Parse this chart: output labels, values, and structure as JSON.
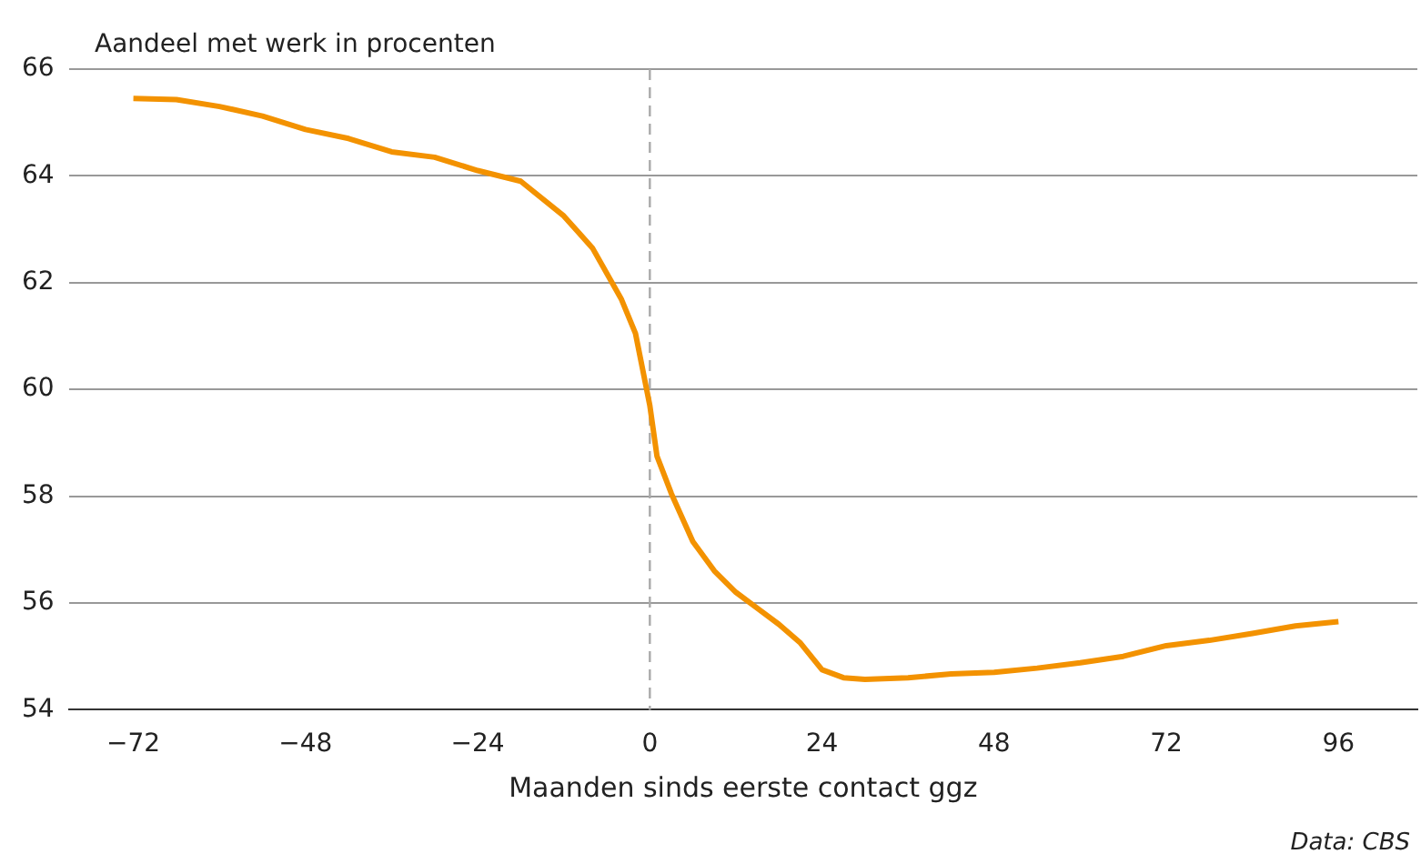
{
  "chart_data": {
    "type": "line",
    "ylabel": "Aandeel met werk in procenten",
    "xlabel": "Maanden sinds eerste contact ggz",
    "annotations": [
      "Data: CBS"
    ],
    "x": [
      -72,
      -66,
      -60,
      -54,
      -48,
      -42,
      -36,
      -30,
      -24,
      -18,
      -12,
      -8,
      -4,
      -2,
      0,
      1,
      3,
      6,
      9,
      12,
      15,
      18,
      21,
      24,
      27,
      30,
      36,
      42,
      48,
      54,
      60,
      66,
      72,
      78,
      84,
      90,
      96
    ],
    "series": [
      {
        "color": "#f39200",
        "values": [
          65.45,
          65.43,
          65.3,
          65.12,
          64.87,
          64.7,
          64.45,
          64.35,
          64.1,
          63.9,
          63.25,
          62.65,
          61.7,
          61.05,
          59.7,
          58.75,
          58.05,
          57.15,
          56.6,
          56.2,
          55.9,
          55.6,
          55.25,
          54.75,
          54.6,
          54.57,
          54.6,
          54.67,
          54.7,
          54.78,
          54.88,
          55.0,
          55.2,
          55.3,
          55.43,
          55.57,
          55.65
        ]
      }
    ],
    "xlim": [
      -81,
      107
    ],
    "xticks": [
      {
        "value": -72,
        "label": "−72"
      },
      {
        "value": -48,
        "label": "−48"
      },
      {
        "value": -24,
        "label": "−24"
      },
      0,
      24,
      48,
      72,
      96
    ],
    "ylim": [
      54,
      66
    ],
    "yticks": [
      54,
      56,
      58,
      60,
      62,
      64,
      66
    ],
    "grid": "y",
    "legend": false,
    "marker": "none",
    "line_style": "solid",
    "ref_lines": [
      {
        "axis": "x",
        "value": 0,
        "color": "#aaaaaa",
        "line_style": "dashed"
      }
    ]
  }
}
